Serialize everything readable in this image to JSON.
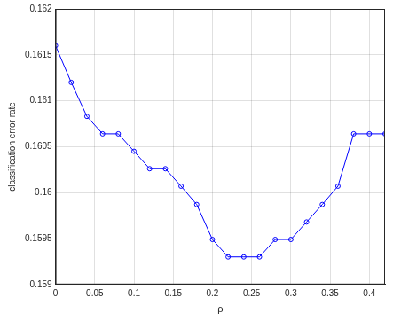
{
  "chart_data": {
    "type": "line",
    "x_label": "ρ",
    "y_label": "classification error rate",
    "x": [
      0,
      0.02,
      0.04,
      0.06,
      0.08,
      0.1,
      0.12,
      0.14,
      0.16,
      0.18,
      0.2,
      0.22,
      0.24,
      0.26,
      0.28,
      0.3,
      0.32,
      0.34,
      0.36,
      0.38,
      0.4,
      0.42
    ],
    "values": [
      0.1616,
      0.1612,
      0.16083,
      0.16064,
      0.16064,
      0.16045,
      0.16026,
      0.16026,
      0.16007,
      0.15987,
      0.15949,
      0.1593,
      0.1593,
      0.1593,
      0.15949,
      0.15949,
      0.15968,
      0.15987,
      0.16007,
      0.16064,
      0.16064,
      0.16064
    ],
    "color": "#0000ff",
    "marker": "circle",
    "line_style": "solid",
    "xlim": [
      0,
      0.42
    ],
    "xticks": [
      0,
      0.05,
      0.1,
      0.15,
      0.2,
      0.25,
      0.3,
      0.35,
      0.4
    ],
    "ylim": [
      0.159,
      0.162
    ],
    "yticks": [
      0.159,
      0.1595,
      0.16,
      0.1605,
      0.161,
      0.1615,
      0.162
    ],
    "grid": true
  }
}
